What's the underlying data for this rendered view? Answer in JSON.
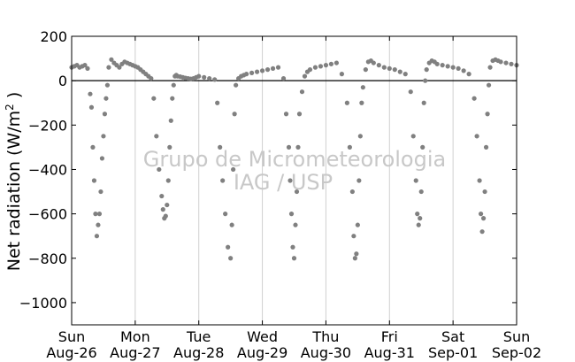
{
  "chart_data": {
    "type": "scatter",
    "title": "",
    "xlabel": "",
    "ylabel": "Net radiation (W/m",
    "ylabel_superscript": "2",
    "ylabel_suffix": " )",
    "xlim": [
      "2012-08-26T00:00",
      "2012-09-02T00:00"
    ],
    "ylim": [
      -1100,
      200
    ],
    "yticks": [
      200,
      0,
      -200,
      -400,
      -600,
      -800,
      -1000
    ],
    "ytick_labels": [
      "200",
      "0",
      "−200",
      "−400",
      "−600",
      "−800",
      "−1000"
    ],
    "xticks": [
      {
        "day": "Sun",
        "date": "Aug-26"
      },
      {
        "day": "Mon",
        "date": "Aug-27"
      },
      {
        "day": "Tue",
        "date": "Aug-28"
      },
      {
        "day": "Wed",
        "date": "Aug-29"
      },
      {
        "day": "Thu",
        "date": "Aug-30"
      },
      {
        "day": "Fri",
        "date": "Aug-31"
      },
      {
        "day": "Sat",
        "date": "Sep-01"
      },
      {
        "day": "Sun",
        "date": "Sep-02"
      }
    ],
    "grid": "vertical",
    "zero_line": true,
    "marker_color": "#808080",
    "watermark": [
      "Grupo de Micrometeorologia",
      "IAG / USP"
    ],
    "series": [
      {
        "x": [
          "2012-08-26T00:00",
          "2012-08-26T01:00",
          "2012-08-26T02:00",
          "2012-08-26T03:00",
          "2012-08-26T04:00",
          "2012-08-26T05:00",
          "2012-08-26T06:00",
          "2012-08-26T07:00",
          "2012-08-26T07:30",
          "2012-08-26T08:00",
          "2012-08-26T08:30",
          "2012-08-26T09:00",
          "2012-08-26T09:30",
          "2012-08-26T10:00",
          "2012-08-26T10:30",
          "2012-08-26T11:00",
          "2012-08-26T11:30",
          "2012-08-26T12:00",
          "2012-08-26T12:30",
          "2012-08-26T13:00",
          "2012-08-26T13:30",
          "2012-08-26T14:00",
          "2012-08-26T15:00",
          "2012-08-26T16:00",
          "2012-08-26T17:00",
          "2012-08-26T18:00",
          "2012-08-26T19:00",
          "2012-08-26T20:00",
          "2012-08-26T21:00",
          "2012-08-26T22:00",
          "2012-08-26T23:00",
          "2012-08-27T00:00",
          "2012-08-27T01:00",
          "2012-08-27T02:00",
          "2012-08-27T03:00",
          "2012-08-27T04:00",
          "2012-08-27T05:00",
          "2012-08-27T06:00",
          "2012-08-27T07:00",
          "2012-08-27T08:00",
          "2012-08-27T09:00",
          "2012-08-27T10:00",
          "2012-08-27T10:30",
          "2012-08-27T11:00",
          "2012-08-27T11:30",
          "2012-08-27T12:00",
          "2012-08-27T12:30",
          "2012-08-27T13:00",
          "2012-08-27T13:30",
          "2012-08-27T14:00",
          "2012-08-27T14:30",
          "2012-08-27T15:00",
          "2012-08-27T15:30",
          "2012-08-27T16:00",
          "2012-08-27T17:00",
          "2012-08-27T18:00",
          "2012-08-27T19:00",
          "2012-08-27T20:00",
          "2012-08-27T21:00",
          "2012-08-27T22:00",
          "2012-08-27T23:00",
          "2012-08-28T00:00",
          "2012-08-28T02:00",
          "2012-08-28T04:00",
          "2012-08-28T06:00",
          "2012-08-28T07:00",
          "2012-08-28T08:00",
          "2012-08-28T09:00",
          "2012-08-28T10:00",
          "2012-08-28T11:00",
          "2012-08-28T12:00",
          "2012-08-28T12:30",
          "2012-08-28T13:00",
          "2012-08-28T13:30",
          "2012-08-28T14:00",
          "2012-08-28T15:00",
          "2012-08-28T16:00",
          "2012-08-28T17:00",
          "2012-08-28T18:00",
          "2012-08-28T20:00",
          "2012-08-28T22:00",
          "2012-08-29T00:00",
          "2012-08-29T02:00",
          "2012-08-29T04:00",
          "2012-08-29T06:00",
          "2012-08-29T08:00",
          "2012-08-29T09:00",
          "2012-08-29T10:00",
          "2012-08-29T10:30",
          "2012-08-29T11:00",
          "2012-08-29T11:30",
          "2012-08-29T12:00",
          "2012-08-29T12:30",
          "2012-08-29T13:00",
          "2012-08-29T13:30",
          "2012-08-29T14:00",
          "2012-08-29T15:00",
          "2012-08-29T16:00",
          "2012-08-29T17:00",
          "2012-08-29T18:00",
          "2012-08-29T20:00",
          "2012-08-29T22:00",
          "2012-08-30T00:00",
          "2012-08-30T02:00",
          "2012-08-30T04:00",
          "2012-08-30T06:00",
          "2012-08-30T08:00",
          "2012-08-30T09:00",
          "2012-08-30T10:00",
          "2012-08-30T10:30",
          "2012-08-30T11:00",
          "2012-08-30T11:30",
          "2012-08-30T12:00",
          "2012-08-30T12:30",
          "2012-08-30T13:00",
          "2012-08-30T13:30",
          "2012-08-30T14:00",
          "2012-08-30T15:00",
          "2012-08-30T16:00",
          "2012-08-30T17:00",
          "2012-08-30T18:00",
          "2012-08-30T20:00",
          "2012-08-30T22:00",
          "2012-08-31T00:00",
          "2012-08-31T02:00",
          "2012-08-31T04:00",
          "2012-08-31T06:00",
          "2012-08-31T08:00",
          "2012-08-31T09:00",
          "2012-08-31T10:00",
          "2012-08-31T10:30",
          "2012-08-31T11:00",
          "2012-08-31T11:30",
          "2012-08-31T12:00",
          "2012-08-31T12:30",
          "2012-08-31T13:00",
          "2012-08-31T13:30",
          "2012-08-31T14:00",
          "2012-08-31T15:00",
          "2012-08-31T16:00",
          "2012-08-31T17:00",
          "2012-08-31T18:00",
          "2012-08-31T20:00",
          "2012-08-31T22:00",
          "2012-09-01T00:00",
          "2012-09-01T02:00",
          "2012-09-01T04:00",
          "2012-09-01T06:00",
          "2012-09-01T08:00",
          "2012-09-01T09:00",
          "2012-09-01T10:00",
          "2012-09-01T10:30",
          "2012-09-01T11:00",
          "2012-09-01T11:30",
          "2012-09-01T12:00",
          "2012-09-01T12:30",
          "2012-09-01T13:00",
          "2012-09-01T13:30",
          "2012-09-01T14:00",
          "2012-09-01T15:00",
          "2012-09-01T16:00",
          "2012-09-01T17:00",
          "2012-09-01T18:00",
          "2012-09-01T20:00",
          "2012-09-01T22:00",
          "2012-09-01T23:59"
        ],
        "y": [
          60,
          65,
          70,
          60,
          65,
          70,
          55,
          -60,
          -120,
          -300,
          -450,
          -600,
          -700,
          -650,
          -600,
          -500,
          -350,
          -250,
          -150,
          -80,
          -20,
          60,
          95,
          80,
          70,
          60,
          75,
          85,
          80,
          75,
          70,
          65,
          60,
          50,
          40,
          30,
          20,
          10,
          -80,
          -250,
          -400,
          -520,
          -580,
          -620,
          -610,
          -560,
          -450,
          -300,
          -180,
          -80,
          -20,
          20,
          25,
          20,
          18,
          15,
          12,
          10,
          8,
          10,
          15,
          20,
          15,
          10,
          5,
          -100,
          -300,
          -450,
          -600,
          -750,
          -800,
          -650,
          -400,
          -150,
          -20,
          10,
          20,
          25,
          30,
          35,
          40,
          45,
          50,
          55,
          60,
          10,
          -150,
          -300,
          -450,
          -600,
          -750,
          -800,
          -650,
          -500,
          -300,
          -150,
          -50,
          20,
          40,
          50,
          60,
          65,
          70,
          75,
          80,
          30,
          -100,
          -300,
          -500,
          -700,
          -800,
          -780,
          -650,
          -450,
          -250,
          -100,
          -30,
          50,
          85,
          90,
          80,
          70,
          60,
          55,
          50,
          40,
          30,
          -50,
          -250,
          -450,
          -600,
          -650,
          -620,
          -500,
          -300,
          -100,
          0,
          50,
          80,
          90,
          85,
          75,
          70,
          65,
          60,
          55,
          45,
          30,
          -80,
          -250,
          -450,
          -600,
          -680,
          -620,
          -500,
          -300,
          -150,
          -20,
          60,
          90,
          95,
          90,
          85,
          80,
          75,
          70
        ]
      }
    ]
  }
}
